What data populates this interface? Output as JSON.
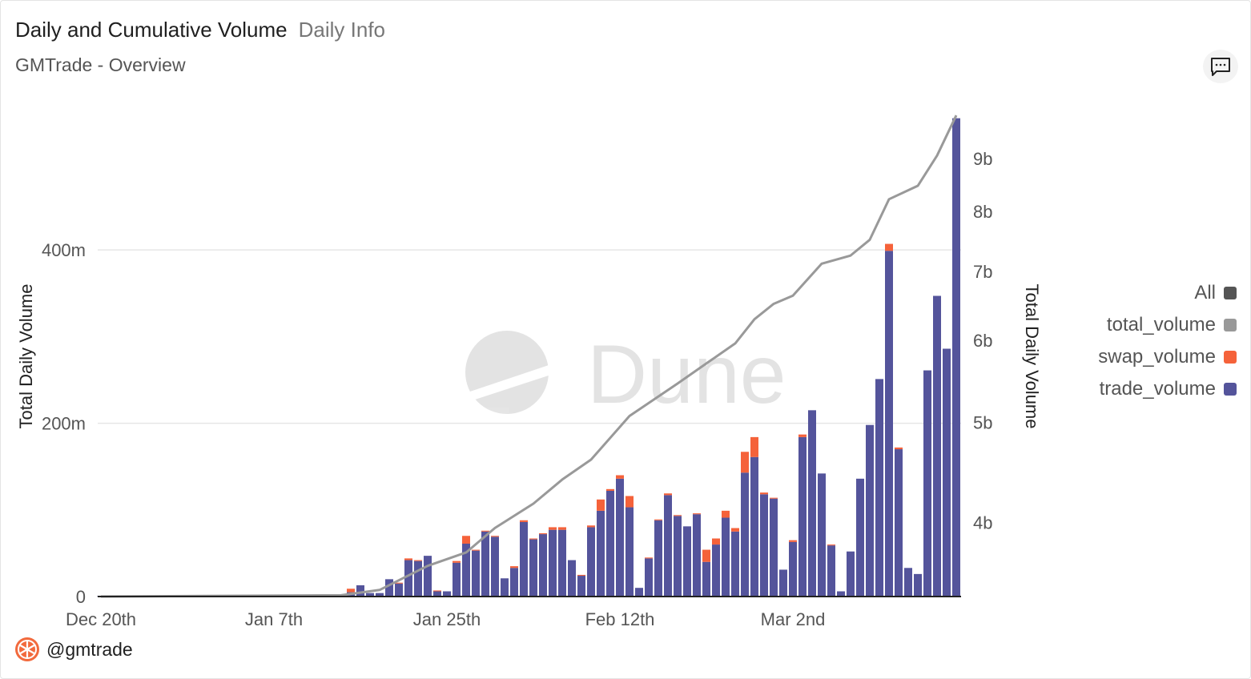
{
  "header": {
    "title": "Daily and Cumulative Volume",
    "tab": "Daily Info",
    "subtitle": "GMTrade - Overview",
    "comment_icon": "comment-icon"
  },
  "footer": {
    "handle": "@gmtrade",
    "logo_icon": "orange-slice-logo-icon",
    "logo_color": "#f26a3d"
  },
  "watermark": "Dune",
  "legend": {
    "position": "right",
    "items": [
      {
        "label": "All",
        "color": "#555555"
      },
      {
        "label": "total_volume",
        "color": "#999999"
      },
      {
        "label": "swap_volume",
        "color": "#f5623a"
      },
      {
        "label": "trade_volume",
        "color": "#54549b"
      }
    ]
  },
  "chart_data": {
    "type": "bar",
    "stacked": true,
    "grid": true,
    "x_tick_labels": [
      "Dec 20th",
      "Jan 7th",
      "Jan 25th",
      "Feb 12th",
      "Mar 2nd"
    ],
    "x_tick_dates": [
      "Dec 20",
      "Jan 7",
      "Jan 25",
      "Feb 12",
      "Mar 2"
    ],
    "ylabel_left": "Total Daily Volume",
    "ylabel_right": "Total Daily Volume",
    "ylim_left": [
      0,
      560
    ],
    "y_ticks_left": [
      {
        "value": 0,
        "label": "0"
      },
      {
        "value": 200,
        "label": "200m"
      },
      {
        "value": 400,
        "label": "400m"
      }
    ],
    "y_unit_left": "millions",
    "y_scale_right": "log",
    "ylim_right": [
      3.39,
      10
    ],
    "y_unit_right": "billions",
    "y_ticks_right": [
      {
        "value": 4,
        "label": "4b"
      },
      {
        "value": 5,
        "label": "5b"
      },
      {
        "value": 6,
        "label": "6b"
      },
      {
        "value": 7,
        "label": "7b"
      },
      {
        "value": 8,
        "label": "8b"
      },
      {
        "value": 9,
        "label": "9b"
      }
    ],
    "categories": [
      "Dec 20",
      "Dec 21",
      "Dec 22",
      "Dec 23",
      "Dec 24",
      "Dec 25",
      "Dec 26",
      "Dec 27",
      "Dec 28",
      "Dec 29",
      "Dec 30",
      "Dec 31",
      "Jan 1",
      "Jan 2",
      "Jan 3",
      "Jan 4",
      "Jan 5",
      "Jan 6",
      "Jan 7",
      "Jan 8",
      "Jan 9",
      "Jan 10",
      "Jan 11",
      "Jan 12",
      "Jan 13",
      "Jan 14",
      "Jan 15",
      "Jan 16",
      "Jan 17",
      "Jan 18",
      "Jan 19",
      "Jan 20",
      "Jan 21",
      "Jan 22",
      "Jan 23",
      "Jan 24",
      "Jan 25",
      "Jan 26",
      "Jan 27",
      "Jan 28",
      "Jan 29",
      "Jan 30",
      "Jan 31",
      "Feb 1",
      "Feb 2",
      "Feb 3",
      "Feb 4",
      "Feb 5",
      "Feb 6",
      "Feb 7",
      "Feb 8",
      "Feb 9",
      "Feb 10",
      "Feb 11",
      "Feb 12",
      "Feb 13",
      "Feb 14",
      "Feb 15",
      "Feb 16",
      "Feb 17",
      "Feb 18",
      "Feb 19",
      "Feb 20",
      "Feb 21",
      "Feb 22",
      "Feb 23",
      "Feb 24",
      "Feb 25",
      "Feb 26",
      "Feb 27",
      "Feb 28",
      "Mar 1",
      "Mar 2",
      "Mar 3",
      "Mar 4",
      "Mar 5",
      "Mar 6",
      "Mar 7",
      "Mar 8",
      "Mar 9",
      "Mar 10",
      "Mar 11",
      "Mar 12",
      "Mar 13",
      "Mar 14",
      "Mar 15",
      "Mar 16",
      "Mar 17",
      "Mar 18",
      "Mar 19"
    ],
    "series": [
      {
        "name": "trade_volume",
        "axis": "left",
        "type": "bar",
        "color": "#54549b",
        "values": [
          0.4,
          0.4,
          0.4,
          0.4,
          0.4,
          0.4,
          0.4,
          0.4,
          0.4,
          0.4,
          1,
          1,
          1,
          1,
          1,
          1,
          1,
          1,
          1,
          1,
          1,
          1,
          1,
          1,
          1,
          2,
          5,
          13,
          4,
          4,
          20,
          15,
          42,
          41,
          47,
          6,
          6,
          39,
          61,
          53,
          75,
          69,
          21,
          33,
          86,
          66,
          72,
          77,
          77,
          42,
          24,
          80,
          99,
          122,
          136,
          103,
          10,
          44,
          88,
          117,
          93,
          81,
          95,
          40,
          60,
          91,
          75,
          143,
          161,
          118,
          113,
          31,
          63,
          184,
          215,
          142,
          59,
          6,
          52,
          136,
          198,
          251,
          399,
          170,
          33,
          26,
          261,
          347,
          286,
          552
        ]
      },
      {
        "name": "swap_volume",
        "axis": "left",
        "type": "bar",
        "color": "#f5623a",
        "values": [
          0,
          0,
          0,
          0,
          0,
          0,
          0,
          0,
          0,
          0,
          0,
          0,
          0,
          0,
          0,
          0,
          0,
          0,
          0,
          0,
          0,
          0,
          0,
          0,
          0,
          0,
          4,
          0,
          0,
          0,
          0,
          1,
          2,
          1,
          0,
          1,
          0,
          2,
          9,
          1,
          1,
          1,
          0,
          2,
          2,
          1,
          1,
          3,
          3,
          0,
          1,
          2,
          13,
          2,
          4,
          13,
          0,
          1,
          1,
          2,
          1,
          0,
          1,
          14,
          7,
          8,
          4,
          24,
          23,
          2,
          1,
          0,
          2,
          3,
          0,
          0,
          1,
          0,
          0,
          0,
          0,
          0,
          8,
          2,
          0,
          0,
          0,
          0,
          0,
          0
        ]
      },
      {
        "name": "total_volume",
        "axis": "right",
        "type": "line",
        "color": "#999999",
        "points": [
          [
            "Dec 20",
            3.39
          ],
          [
            "Jan 14",
            3.4
          ],
          [
            "Jan 18",
            3.44
          ],
          [
            "Jan 23",
            3.63
          ],
          [
            "Jan 27",
            3.74
          ],
          [
            "Jan 30",
            3.95
          ],
          [
            "Feb 3",
            4.17
          ],
          [
            "Feb 6",
            4.4
          ],
          [
            "Feb 9",
            4.6
          ],
          [
            "Feb 13",
            5.07
          ],
          [
            "Feb 18",
            5.45
          ],
          [
            "Feb 21",
            5.7
          ],
          [
            "Feb 24",
            5.96
          ],
          [
            "Feb 26",
            6.29
          ],
          [
            "Feb 28",
            6.51
          ],
          [
            "Mar 2",
            6.63
          ],
          [
            "Mar 5",
            7.12
          ],
          [
            "Mar 8",
            7.25
          ],
          [
            "Mar 10",
            7.51
          ],
          [
            "Mar 12",
            8.22
          ],
          [
            "Mar 15",
            8.47
          ],
          [
            "Mar 17",
            9.06
          ],
          [
            "Mar 19",
            9.91
          ]
        ]
      }
    ]
  }
}
